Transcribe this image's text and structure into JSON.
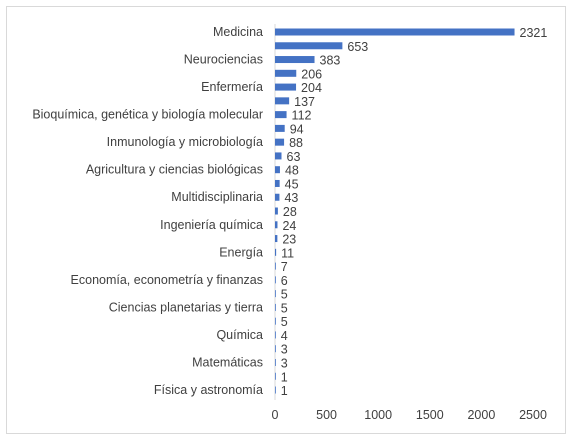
{
  "chart_data": {
    "type": "bar",
    "orientation": "horizontal",
    "title": "",
    "xlabel": "",
    "ylabel": "",
    "xlim": [
      0,
      2500
    ],
    "xticks": [
      0,
      500,
      1000,
      1500,
      2000,
      2500
    ],
    "grid": false,
    "legend": "none",
    "bar_color": "#4472c4",
    "categories": [
      "Medicina",
      "",
      "Neurociencias",
      "",
      "Enfermería",
      "",
      "Bioquímica, genética y biología molecular",
      "",
      "Inmunología y microbiología",
      "",
      "Agricultura y ciencias biológicas",
      "",
      "Multidisciplinaria",
      "",
      "Ingeniería química",
      "",
      "Energía",
      "",
      "Economía, econometría y finanzas",
      "",
      "Ciencias planetarias y tierra",
      "",
      "Química",
      "",
      "Matemáticas",
      "",
      "Física y astronomía"
    ],
    "values": [
      2321,
      653,
      383,
      206,
      204,
      137,
      112,
      94,
      88,
      63,
      48,
      45,
      43,
      28,
      24,
      23,
      11,
      7,
      6,
      5,
      5,
      5,
      4,
      3,
      3,
      1,
      1
    ]
  }
}
